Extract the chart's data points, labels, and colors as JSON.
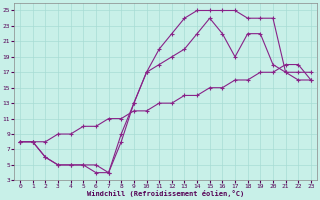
{
  "xlabel": "Windchill (Refroidissement éolien,°C)",
  "bg_color": "#c8f0e8",
  "grid_color": "#a8dcd4",
  "line_color": "#882288",
  "xlim": [
    -0.5,
    23.5
  ],
  "ylim": [
    3,
    26
  ],
  "xticks": [
    0,
    1,
    2,
    3,
    4,
    5,
    6,
    7,
    8,
    9,
    10,
    11,
    12,
    13,
    14,
    15,
    16,
    17,
    18,
    19,
    20,
    21,
    22,
    23
  ],
  "yticks": [
    3,
    5,
    7,
    9,
    11,
    13,
    15,
    17,
    19,
    21,
    23,
    25
  ],
  "curve1_x": [
    0,
    1,
    2,
    3,
    4,
    5,
    6,
    7,
    8,
    9,
    10,
    11,
    12,
    13,
    14,
    15,
    16,
    17,
    18,
    19,
    20,
    21,
    22,
    23
  ],
  "curve1_y": [
    8,
    8,
    6,
    5,
    5,
    5,
    4,
    4,
    9,
    13,
    17,
    20,
    22,
    24,
    25,
    25,
    25,
    25,
    24,
    24,
    24,
    17,
    16,
    16
  ],
  "curve2_x": [
    0,
    1,
    2,
    3,
    4,
    5,
    6,
    7,
    8,
    9,
    10,
    11,
    12,
    13,
    14,
    15,
    16,
    17,
    18,
    19,
    20,
    21,
    22,
    23
  ],
  "curve2_y": [
    8,
    8,
    6,
    5,
    5,
    5,
    5,
    4,
    8,
    13,
    17,
    18,
    19,
    20,
    22,
    24,
    22,
    19,
    22,
    22,
    18,
    17,
    17,
    17
  ],
  "curve3_x": [
    0,
    1,
    2,
    3,
    4,
    5,
    6,
    7,
    8,
    9,
    10,
    11,
    12,
    13,
    14,
    15,
    16,
    17,
    18,
    19,
    20,
    21,
    22,
    23
  ],
  "curve3_y": [
    8,
    8,
    8,
    9,
    9,
    10,
    10,
    11,
    11,
    12,
    12,
    13,
    13,
    14,
    14,
    15,
    15,
    16,
    16,
    17,
    17,
    18,
    18,
    16
  ]
}
